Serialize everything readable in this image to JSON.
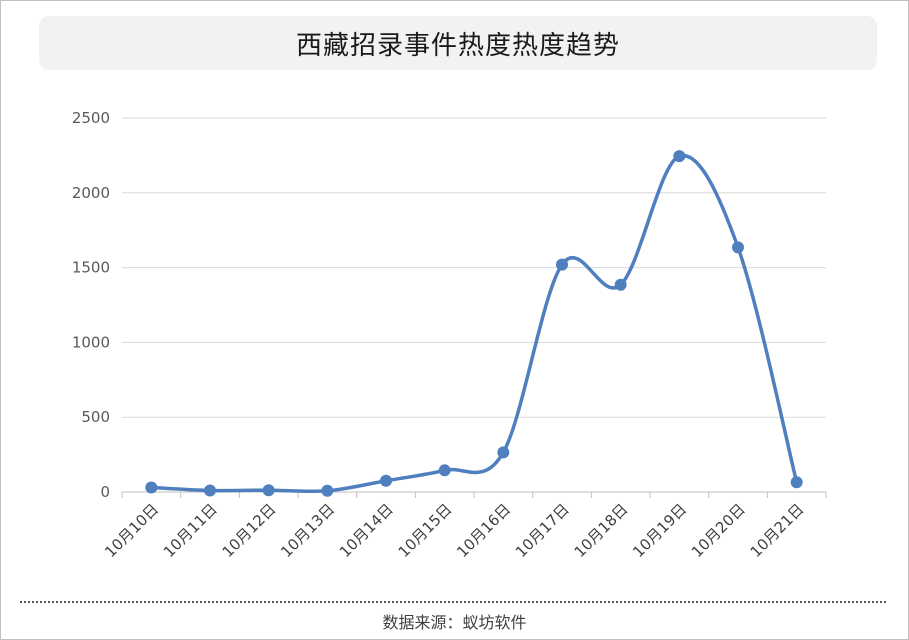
{
  "header": {
    "title": "西藏招录事件热度热度趋势"
  },
  "footer": {
    "source": "数据来源：蚁坊软件"
  },
  "colors": {
    "series": "#4f7fbf",
    "grid": "#d9d9d9",
    "title_bg": "#f2f2f2"
  },
  "chart_data": {
    "type": "line",
    "title": "西藏招录事件热度热度趋势",
    "smooth": true,
    "markers": true,
    "grid": true,
    "legend": "none",
    "categories": [
      "10月10日",
      "10月11日",
      "10月12日",
      "10月13日",
      "10月14日",
      "10月15日",
      "10月16日",
      "10月17日",
      "10月18日",
      "10月19日",
      "10月20日",
      "10月21日"
    ],
    "series": [
      {
        "values": [
          30,
          10,
          12,
          8,
          75,
          145,
          265,
          1520,
          1385,
          2245,
          1635,
          65
        ]
      }
    ],
    "ylim": [
      0,
      2500
    ],
    "yticks": [
      0,
      500,
      1000,
      1500,
      2000,
      2500
    ],
    "xlabel": "",
    "ylabel": ""
  }
}
